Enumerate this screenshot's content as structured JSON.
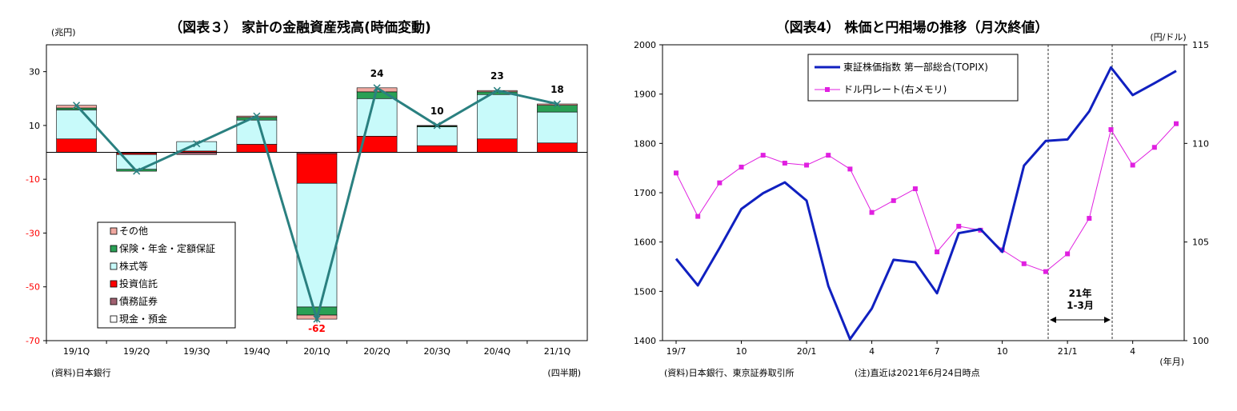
{
  "chart_data": [
    {
      "type": "bar",
      "title": "（図表３） 家計の金融資産残高(時価変動)",
      "unit_label": "(兆円)",
      "xlabel": "(四半期)",
      "source": "(資料)日本銀行",
      "ylim": [
        -70,
        40
      ],
      "yticks": [
        "30",
        "10",
        "-10",
        "-30",
        "-50",
        "-70"
      ],
      "categories": [
        "19/1Q",
        "19/2Q",
        "19/3Q",
        "19/4Q",
        "20/1Q",
        "20/2Q",
        "20/3Q",
        "20/4Q",
        "21/1Q"
      ],
      "legend": [
        "その他",
        "保険・年金・定額保証",
        "株式等",
        "投資信託",
        "債務証券",
        "現金・預金"
      ],
      "colors": {
        "その他": "#f0a8a0",
        "保険・年金・定額保証": "#2aa055",
        "株式等": "#c8fafa",
        "投資信託": "#ff0000",
        "債務証券": "#a06070",
        "現金・預金": "#ffffff",
        "total_line": "#2a8080"
      },
      "series": [
        {
          "name": "現金・預金",
          "values": [
            0,
            0,
            0,
            0,
            0,
            0,
            0,
            0,
            0
          ]
        },
        {
          "name": "債務証券",
          "values": [
            0,
            -0.3,
            -0.8,
            0,
            -0.5,
            0,
            0,
            0,
            0
          ]
        },
        {
          "name": "投資信託",
          "values": [
            5,
            -0.5,
            0.5,
            3,
            -11,
            6,
            2.5,
            5,
            3.5
          ]
        },
        {
          "name": "株式等",
          "values": [
            10.8,
            -5.5,
            3.5,
            9,
            -46,
            14,
            7,
            16.5,
            11.5
          ]
        },
        {
          "name": "保険・年金・定額保証",
          "values": [
            0.7,
            -0.7,
            0,
            1,
            -3,
            2.5,
            0.3,
            1,
            2.5
          ]
        },
        {
          "name": "その他",
          "values": [
            1,
            0,
            0,
            0.5,
            -1.5,
            1.5,
            0.2,
            0.5,
            0.5
          ]
        }
      ],
      "totals": [
        17.5,
        -7,
        3.2,
        13.5,
        -62,
        24,
        10,
        23,
        18
      ],
      "total_labels": [
        "",
        "",
        "",
        "",
        "-62",
        "24",
        "10",
        "23",
        "18"
      ]
    },
    {
      "type": "line",
      "title": "（図表4） 株価と円相場の推移（月次終値）",
      "right_unit_label": "(円/ドル)",
      "xlabel": "(年月)",
      "source": "(資料)日本銀行、東京証券取引所",
      "note": "(注)直近は2021年6月24日時点",
      "annotation": [
        "21年",
        "1-3月"
      ],
      "ylim_left": [
        1400,
        2000
      ],
      "ylim_right": [
        100,
        115
      ],
      "yticks_left": [
        "2000",
        "1900",
        "1800",
        "1700",
        "1600",
        "1500",
        "1400"
      ],
      "yticks_right": [
        "115",
        "110",
        "105",
        "100"
      ],
      "xtick_labels": [
        "19/7",
        "10",
        "20/1",
        "4",
        "7",
        "10",
        "21/1",
        "4"
      ],
      "x": [
        "19/7",
        "19/8",
        "19/9",
        "19/10",
        "19/11",
        "19/12",
        "20/1",
        "20/2",
        "20/3",
        "20/4",
        "20/5",
        "20/6",
        "20/7",
        "20/8",
        "20/9",
        "20/10",
        "20/11",
        "20/12",
        "21/1",
        "21/2",
        "21/3",
        "21/4",
        "21/5",
        "21/6"
      ],
      "series": [
        {
          "name": "東証株価指数 第一部総合(TOPIX)",
          "axis": "left",
          "color": "#1020c0",
          "values": [
            1566,
            1512,
            1588,
            1667,
            1699,
            1721,
            1684,
            1511,
            1403,
            1465,
            1564,
            1559,
            1496,
            1618,
            1626,
            1580,
            1755,
            1805,
            1808,
            1865,
            1954,
            1898,
            1922,
            1947
          ]
        },
        {
          "name": "ドル円レート(右メモリ)",
          "axis": "right",
          "color": "#e020e0",
          "values": [
            108.5,
            106.3,
            108.0,
            108.8,
            109.4,
            109.0,
            108.9,
            109.4,
            108.7,
            106.5,
            107.1,
            107.7,
            104.5,
            105.8,
            105.6,
            104.6,
            103.9,
            103.5,
            104.4,
            106.2,
            110.7,
            108.9,
            109.8,
            111.0
          ]
        }
      ]
    }
  ]
}
